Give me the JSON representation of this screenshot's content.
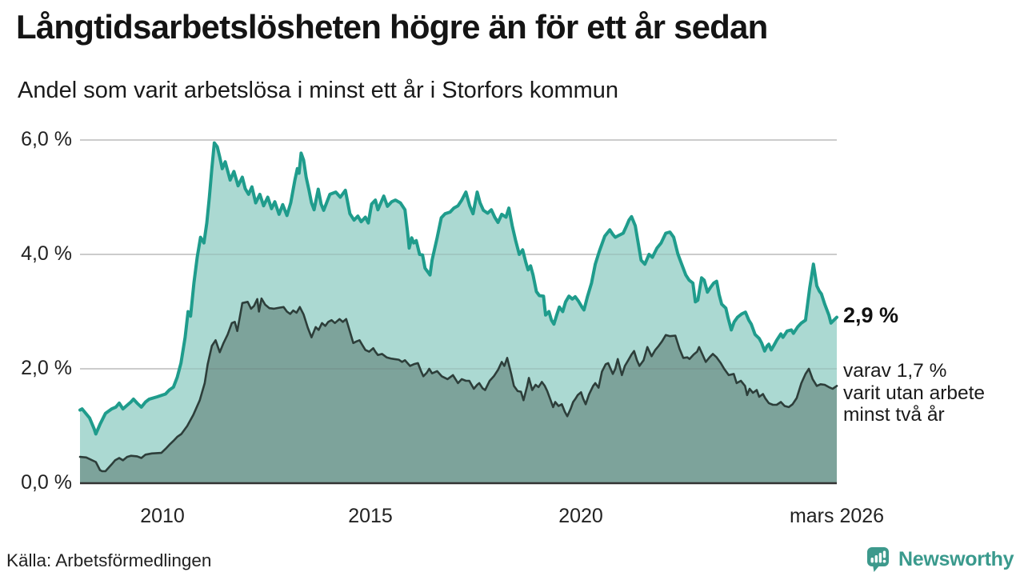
{
  "header": {
    "title": "Långtidsarbetslösheten högre än för ett år sedan",
    "subtitle": "Andel som varit arbetslösa i minst ett år i Storfors kommun"
  },
  "annotations": {
    "latest_value": "2,9 %",
    "secondary_line1": "varav 1,7 %",
    "secondary_line2": "varit utan arbete",
    "secondary_line3": "minst två år"
  },
  "footer": {
    "source": "Källa: Arbetsförmedlingen",
    "brand": "Newsworthy"
  },
  "colors": {
    "series1_line": "#1f9c8c",
    "series1_fill": "#abd9d2",
    "series2_line": "#2d3e3a",
    "series2_fill": "#7da39b",
    "gridline": "#d4d4d4",
    "gridline_overlay": "rgba(90,90,90,0.18)",
    "baseline": "#333333",
    "brand_teal": "#3d998c"
  },
  "chart_data": {
    "type": "area",
    "title": "Långtidsarbetslösheten högre än för ett år sedan",
    "subtitle": "Andel som varit arbetslösa i minst ett år i Storfors kommun",
    "grid": true,
    "legend_position": "none",
    "x_axis": {
      "range": [
        2008.03,
        2026.17
      ],
      "ticks": [
        {
          "label": "2010",
          "value": 2010
        },
        {
          "label": "2015",
          "value": 2015
        },
        {
          "label": "2020",
          "value": 2020
        },
        {
          "label": "mars 2026",
          "value": 2026.17
        }
      ]
    },
    "y_axis": {
      "range": [
        0,
        6.0
      ],
      "unit": "%",
      "ticks": [
        {
          "label": "6,0 %",
          "value": 6
        },
        {
          "label": "4,0 %",
          "value": 4
        },
        {
          "label": "2,0 %",
          "value": 2
        },
        {
          "label": "0,0 %",
          "value": 0
        }
      ]
    },
    "series": [
      {
        "name": "Arbetslösa minst ett år",
        "end_label": "2,9 %",
        "line_color": "#1f9c8c",
        "fill_color": "#abd9d2",
        "x": [
          2008.03,
          2008.08,
          2008.26,
          2008.37,
          2008.41,
          2008.51,
          2008.64,
          2008.79,
          2008.89,
          2008.97,
          2009.06,
          2009.25,
          2009.31,
          2009.4,
          2009.5,
          2009.6,
          2009.69,
          2009.88,
          2010.08,
          2010.17,
          2010.27,
          2010.36,
          2010.45,
          2010.55,
          2010.62,
          2010.68,
          2010.76,
          2010.84,
          2010.92,
          2011.0,
          2011.07,
          2011.13,
          2011.19,
          2011.25,
          2011.32,
          2011.38,
          2011.44,
          2011.51,
          2011.63,
          2011.72,
          2011.82,
          2011.92,
          2011.99,
          2012.07,
          2012.15,
          2012.24,
          2012.34,
          2012.43,
          2012.53,
          2012.62,
          2012.7,
          2012.8,
          2012.89,
          2012.99,
          2013.08,
          2013.18,
          2013.24,
          2013.28,
          2013.33,
          2013.39,
          2013.45,
          2013.52,
          2013.58,
          2013.64,
          2013.74,
          2013.81,
          2013.87,
          2014.02,
          2014.16,
          2014.27,
          2014.39,
          2014.5,
          2014.6,
          2014.69,
          2014.77,
          2014.87,
          2014.94,
          2015.02,
          2015.11,
          2015.17,
          2015.31,
          2015.4,
          2015.5,
          2015.59,
          2015.71,
          2015.82,
          2015.88,
          2015.92,
          2015.98,
          2016.03,
          2016.09,
          2016.17,
          2016.24,
          2016.3,
          2016.36,
          2016.42,
          2016.47,
          2016.53,
          2016.59,
          2016.65,
          2016.69,
          2016.78,
          2016.9,
          2016.99,
          2017.09,
          2017.18,
          2017.28,
          2017.37,
          2017.45,
          2017.55,
          2017.62,
          2017.7,
          2017.8,
          2017.89,
          2017.97,
          2018.05,
          2018.14,
          2018.24,
          2018.31,
          2018.39,
          2018.47,
          2018.56,
          2018.64,
          2018.72,
          2018.77,
          2018.83,
          2018.89,
          2018.97,
          2019.04,
          2019.14,
          2019.19,
          2019.27,
          2019.33,
          2019.39,
          2019.46,
          2019.52,
          2019.6,
          2019.67,
          2019.75,
          2019.83,
          2019.9,
          2019.98,
          2020.06,
          2020.11,
          2020.19,
          2020.29,
          2020.38,
          2020.48,
          2020.55,
          2020.61,
          2020.73,
          2020.8,
          2020.86,
          2020.94,
          2021.05,
          2021.13,
          2021.19,
          2021.25,
          2021.34,
          2021.48,
          2021.57,
          2021.67,
          2021.75,
          2021.86,
          2021.96,
          2022.07,
          2022.17,
          2022.26,
          2022.36,
          2022.43,
          2022.55,
          2022.63,
          2022.72,
          2022.78,
          2022.84,
          2022.93,
          2022.99,
          2023.07,
          2023.14,
          2023.22,
          2023.29,
          2023.35,
          2023.41,
          2023.51,
          2023.56,
          2023.64,
          2023.71,
          2023.79,
          2023.89,
          2023.98,
          2024.06,
          2024.12,
          2024.21,
          2024.31,
          2024.37,
          2024.44,
          2024.5,
          2024.54,
          2024.6,
          2024.67,
          2024.73,
          2024.83,
          2024.88,
          2024.98,
          2025.08,
          2025.13,
          2025.23,
          2025.32,
          2025.42,
          2025.52,
          2025.61,
          2025.69,
          2025.75,
          2025.8,
          2025.88,
          2025.98,
          2026.03,
          2026.17
        ],
        "values": [
          1.28,
          1.3,
          1.14,
          0.95,
          0.86,
          1.03,
          1.22,
          1.3,
          1.33,
          1.4,
          1.3,
          1.42,
          1.47,
          1.4,
          1.33,
          1.42,
          1.47,
          1.51,
          1.56,
          1.63,
          1.68,
          1.85,
          2.1,
          2.55,
          3.0,
          2.92,
          3.5,
          3.95,
          4.3,
          4.2,
          4.55,
          5.0,
          5.5,
          5.95,
          5.88,
          5.7,
          5.5,
          5.62,
          5.3,
          5.45,
          5.2,
          5.35,
          5.15,
          5.05,
          5.18,
          4.9,
          5.05,
          4.85,
          5.0,
          4.8,
          4.92,
          4.7,
          4.87,
          4.68,
          4.9,
          5.3,
          5.5,
          5.42,
          5.77,
          5.65,
          5.35,
          5.12,
          4.9,
          4.78,
          5.14,
          4.88,
          4.77,
          5.05,
          5.09,
          5.0,
          5.12,
          4.71,
          4.6,
          4.67,
          4.57,
          4.65,
          4.55,
          4.88,
          4.95,
          4.78,
          5.02,
          4.84,
          4.92,
          4.95,
          4.9,
          4.78,
          4.4,
          4.11,
          4.29,
          4.2,
          4.24,
          4.0,
          3.99,
          3.76,
          3.7,
          3.64,
          3.9,
          4.1,
          4.29,
          4.5,
          4.64,
          4.71,
          4.74,
          4.81,
          4.85,
          4.95,
          5.09,
          4.85,
          4.71,
          5.09,
          4.9,
          4.77,
          4.72,
          4.78,
          4.65,
          4.56,
          4.7,
          4.65,
          4.81,
          4.5,
          4.25,
          4.0,
          4.08,
          3.85,
          3.73,
          3.8,
          3.64,
          3.35,
          3.28,
          3.27,
          2.94,
          3.0,
          2.85,
          2.78,
          2.95,
          3.08,
          3.0,
          3.17,
          3.27,
          3.22,
          3.26,
          3.18,
          3.08,
          3.03,
          3.25,
          3.5,
          3.83,
          4.06,
          4.2,
          4.32,
          4.43,
          4.35,
          4.3,
          4.33,
          4.37,
          4.5,
          4.6,
          4.66,
          4.5,
          3.9,
          3.83,
          4.0,
          3.95,
          4.11,
          4.2,
          4.37,
          4.39,
          4.3,
          4.01,
          3.87,
          3.64,
          3.55,
          3.5,
          3.17,
          3.2,
          3.59,
          3.55,
          3.34,
          3.42,
          3.5,
          3.53,
          3.3,
          3.13,
          3.06,
          2.9,
          2.68,
          2.82,
          2.9,
          2.96,
          2.99,
          2.85,
          2.78,
          2.6,
          2.53,
          2.45,
          2.31,
          2.4,
          2.43,
          2.33,
          2.42,
          2.5,
          2.61,
          2.55,
          2.66,
          2.68,
          2.62,
          2.73,
          2.8,
          2.85,
          3.41,
          3.83,
          3.45,
          3.36,
          3.31,
          3.13,
          2.94,
          2.8,
          2.9
        ]
      },
      {
        "name": "Arbetslösa minst två år",
        "end_label": "1,7 %",
        "line_color": "#2d3e3a",
        "fill_color": "#7da39b",
        "x": [
          2008.03,
          2008.18,
          2008.41,
          2008.51,
          2008.56,
          2008.64,
          2008.79,
          2008.87,
          2008.97,
          2009.06,
          2009.16,
          2009.25,
          2009.4,
          2009.5,
          2009.6,
          2009.75,
          2009.98,
          2010.08,
          2010.17,
          2010.27,
          2010.36,
          2010.46,
          2010.6,
          2010.75,
          2010.9,
          2011.02,
          2011.09,
          2011.19,
          2011.28,
          2011.38,
          2011.47,
          2011.57,
          2011.67,
          2011.74,
          2011.8,
          2011.92,
          2012.05,
          2012.13,
          2012.2,
          2012.28,
          2012.32,
          2012.38,
          2012.47,
          2012.57,
          2012.68,
          2012.82,
          2012.91,
          2012.99,
          2013.07,
          2013.14,
          2013.22,
          2013.3,
          2013.39,
          2013.49,
          2013.58,
          2013.68,
          2013.75,
          2013.83,
          2013.91,
          2013.98,
          2014.06,
          2014.14,
          2014.25,
          2014.33,
          2014.41,
          2014.5,
          2014.58,
          2014.66,
          2014.73,
          2014.81,
          2014.87,
          2014.96,
          2015.06,
          2015.11,
          2015.17,
          2015.27,
          2015.38,
          2015.48,
          2015.56,
          2015.67,
          2015.75,
          2015.82,
          2015.94,
          2016.03,
          2016.13,
          2016.21,
          2016.26,
          2016.34,
          2016.4,
          2016.47,
          2016.59,
          2016.7,
          2016.84,
          2016.97,
          2017.09,
          2017.18,
          2017.28,
          2017.36,
          2017.47,
          2017.55,
          2017.6,
          2017.68,
          2017.74,
          2017.85,
          2017.95,
          2018.05,
          2018.14,
          2018.2,
          2018.27,
          2018.37,
          2018.43,
          2018.52,
          2018.6,
          2018.66,
          2018.75,
          2018.79,
          2018.87,
          2018.95,
          2019.02,
          2019.1,
          2019.17,
          2019.23,
          2019.31,
          2019.37,
          2019.42,
          2019.5,
          2019.58,
          2019.65,
          2019.71,
          2019.79,
          2019.85,
          2019.9,
          2019.96,
          2020.04,
          2020.09,
          2020.15,
          2020.23,
          2020.33,
          2020.38,
          2020.46,
          2020.54,
          2020.63,
          2020.69,
          2020.8,
          2020.86,
          2020.92,
          2021.02,
          2021.09,
          2021.17,
          2021.25,
          2021.31,
          2021.38,
          2021.44,
          2021.54,
          2021.63,
          2021.73,
          2021.82,
          2021.9,
          2021.98,
          2022.07,
          2022.17,
          2022.3,
          2022.4,
          2022.49,
          2022.59,
          2022.64,
          2022.74,
          2022.82,
          2022.87,
          2022.95,
          2023.03,
          2023.12,
          2023.2,
          2023.29,
          2023.39,
          2023.47,
          2023.58,
          2023.7,
          2023.77,
          2023.87,
          2023.97,
          2024.02,
          2024.08,
          2024.16,
          2024.25,
          2024.31,
          2024.4,
          2024.46,
          2024.54,
          2024.64,
          2024.73,
          2024.83,
          2024.92,
          2025.02,
          2025.11,
          2025.21,
          2025.32,
          2025.42,
          2025.5,
          2025.59,
          2025.69,
          2025.78,
          2025.88,
          2025.98,
          2026.07,
          2026.17
        ],
        "values": [
          0.46,
          0.45,
          0.37,
          0.23,
          0.21,
          0.21,
          0.33,
          0.4,
          0.44,
          0.4,
          0.46,
          0.48,
          0.47,
          0.44,
          0.5,
          0.52,
          0.53,
          0.6,
          0.67,
          0.74,
          0.81,
          0.86,
          1.0,
          1.2,
          1.45,
          1.75,
          2.08,
          2.4,
          2.5,
          2.29,
          2.45,
          2.6,
          2.8,
          2.82,
          2.66,
          3.15,
          3.17,
          3.05,
          3.1,
          3.22,
          3.0,
          3.23,
          3.12,
          3.06,
          3.05,
          3.07,
          3.08,
          3.0,
          2.96,
          3.02,
          2.98,
          3.08,
          2.95,
          2.72,
          2.55,
          2.73,
          2.68,
          2.8,
          2.75,
          2.82,
          2.85,
          2.8,
          2.87,
          2.82,
          2.87,
          2.65,
          2.45,
          2.48,
          2.5,
          2.4,
          2.33,
          2.3,
          2.36,
          2.3,
          2.24,
          2.26,
          2.2,
          2.18,
          2.17,
          2.16,
          2.12,
          2.15,
          2.05,
          2.08,
          2.1,
          1.95,
          1.87,
          1.93,
          2.0,
          1.92,
          1.96,
          1.87,
          1.82,
          1.89,
          1.75,
          1.82,
          1.79,
          1.79,
          1.65,
          1.72,
          1.75,
          1.66,
          1.63,
          1.79,
          1.87,
          1.98,
          2.12,
          2.05,
          2.19,
          1.9,
          1.7,
          1.61,
          1.6,
          1.45,
          1.7,
          1.84,
          1.63,
          1.72,
          1.68,
          1.77,
          1.7,
          1.61,
          1.45,
          1.33,
          1.42,
          1.35,
          1.38,
          1.25,
          1.17,
          1.3,
          1.42,
          1.47,
          1.54,
          1.59,
          1.48,
          1.38,
          1.55,
          1.7,
          1.75,
          1.67,
          1.95,
          2.08,
          2.1,
          1.91,
          2.0,
          2.17,
          1.89,
          2.05,
          2.15,
          2.25,
          2.31,
          2.15,
          2.05,
          2.15,
          2.38,
          2.22,
          2.33,
          2.4,
          2.48,
          2.59,
          2.57,
          2.58,
          2.35,
          2.19,
          2.2,
          2.17,
          2.25,
          2.3,
          2.38,
          2.25,
          2.12,
          2.2,
          2.26,
          2.2,
          2.1,
          2.0,
          1.89,
          1.91,
          1.75,
          1.79,
          1.7,
          1.54,
          1.65,
          1.58,
          1.63,
          1.51,
          1.56,
          1.48,
          1.4,
          1.37,
          1.37,
          1.42,
          1.35,
          1.33,
          1.38,
          1.49,
          1.75,
          1.91,
          2.0,
          1.82,
          1.7,
          1.73,
          1.72,
          1.68,
          1.65,
          1.7
        ]
      }
    ]
  }
}
